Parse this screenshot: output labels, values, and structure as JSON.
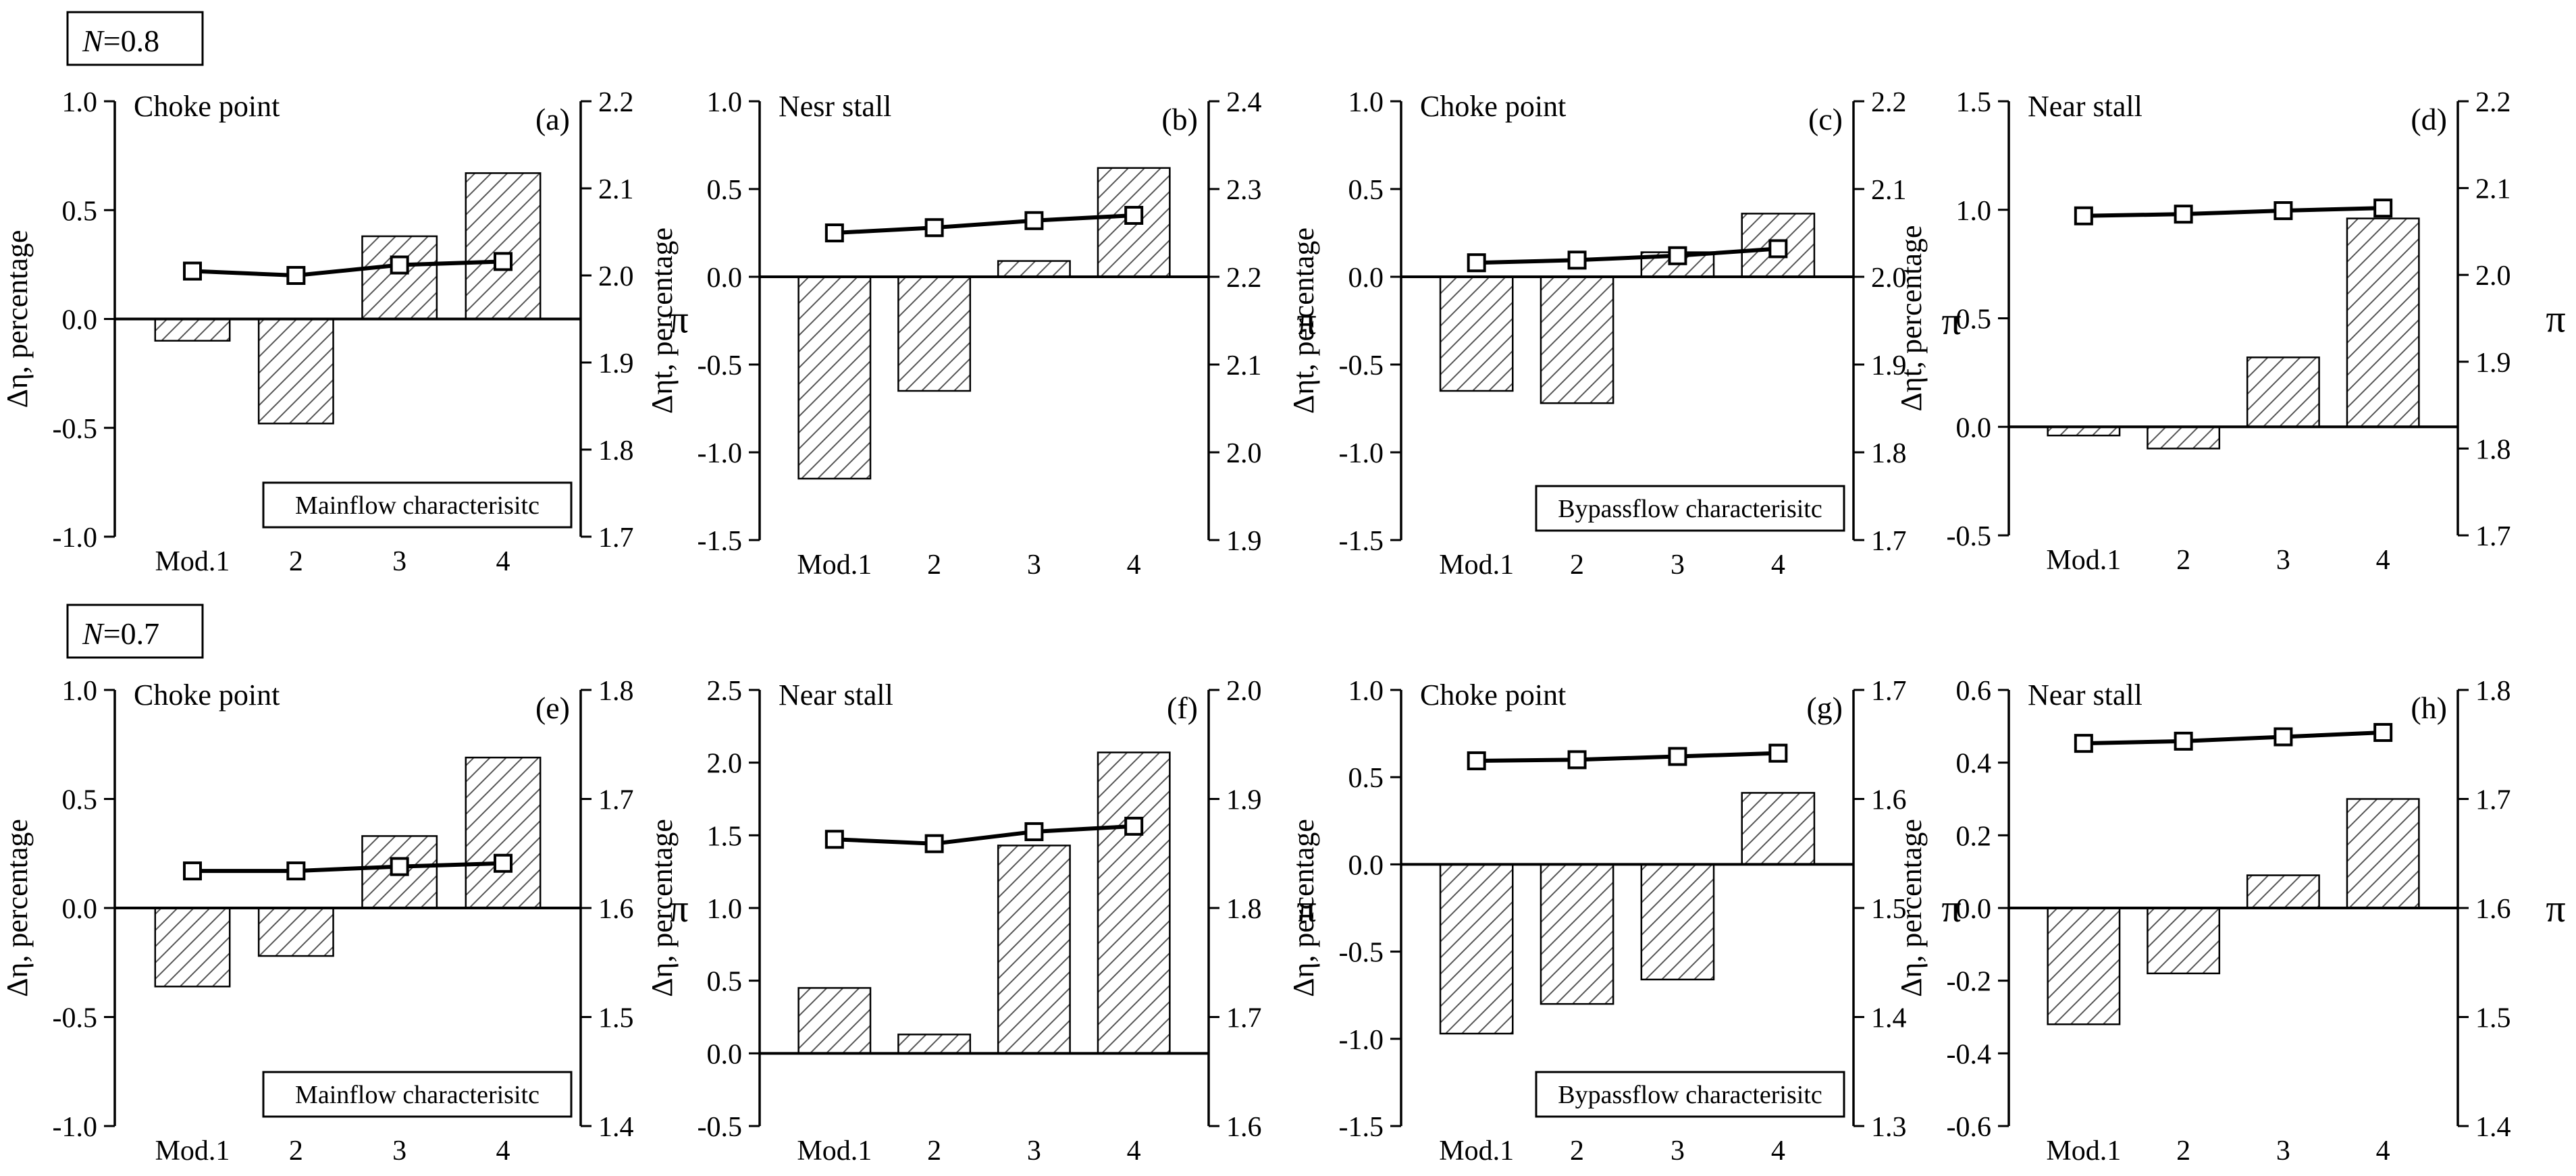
{
  "figure": {
    "rows": [
      {
        "label_var": "N",
        "label_rest": "=0.8"
      },
      {
        "label_var": "N",
        "label_rest": "=0.7"
      }
    ]
  },
  "chart_data": [
    {
      "type": "bar",
      "panel": "(a)",
      "title": "Choke point",
      "legend_box": "Mainflow characterisitc",
      "categories": [
        "Mod.1",
        "2",
        "3",
        "4"
      ],
      "ylabel": "Δη, percentage",
      "y2label": "π",
      "ylim": [
        -1.0,
        1.0
      ],
      "yticks": [
        -1.0,
        -0.5,
        0.0,
        0.5,
        1.0
      ],
      "y2lim": [
        1.7,
        2.2
      ],
      "y2ticks": [
        1.7,
        1.8,
        1.9,
        2.0,
        2.1,
        2.2
      ],
      "series": [
        {
          "name": "Δη",
          "kind": "bar",
          "axis": "left",
          "values": [
            -0.1,
            -0.48,
            0.38,
            0.67
          ]
        },
        {
          "name": "π",
          "kind": "line",
          "axis": "right",
          "values": [
            2.005,
            2.0,
            2.012,
            2.016
          ]
        }
      ]
    },
    {
      "type": "bar",
      "panel": "(b)",
      "title": "Nesr stall",
      "legend_box": "",
      "categories": [
        "Mod.1",
        "2",
        "3",
        "4"
      ],
      "ylabel": "Δηt, percentage",
      "y2label": "π",
      "ylim": [
        -1.5,
        1.0
      ],
      "yticks": [
        -1.5,
        -1.0,
        -0.5,
        0.0,
        0.5,
        1.0
      ],
      "y2lim": [
        1.9,
        2.4
      ],
      "y2ticks": [
        1.9,
        2.0,
        2.1,
        2.2,
        2.3,
        2.4
      ],
      "series": [
        {
          "name": "Δηt",
          "kind": "bar",
          "axis": "left",
          "values": [
            -1.15,
            -0.65,
            0.09,
            0.62
          ]
        },
        {
          "name": "π",
          "kind": "line",
          "axis": "right",
          "values": [
            2.25,
            2.256,
            2.264,
            2.27
          ]
        }
      ]
    },
    {
      "type": "bar",
      "panel": "(c)",
      "title": "Choke point",
      "legend_box": "Bypassflow characterisitc",
      "categories": [
        "Mod.1",
        "2",
        "3",
        "4"
      ],
      "ylabel": "Δηt, percentage",
      "y2label": "π",
      "ylim": [
        -1.5,
        1.0
      ],
      "yticks": [
        -1.5,
        -1.0,
        -0.5,
        0.0,
        0.5,
        1.0
      ],
      "y2lim": [
        1.7,
        2.2
      ],
      "y2ticks": [
        1.7,
        1.8,
        1.9,
        2.0,
        2.1,
        2.2
      ],
      "series": [
        {
          "name": "Δηt",
          "kind": "bar",
          "axis": "left",
          "values": [
            -0.65,
            -0.72,
            0.14,
            0.36
          ]
        },
        {
          "name": "π",
          "kind": "line",
          "axis": "right",
          "values": [
            2.016,
            2.019,
            2.024,
            2.032
          ]
        }
      ]
    },
    {
      "type": "bar",
      "panel": "(d)",
      "title": "Near stall",
      "legend_box": "",
      "categories": [
        "Mod.1",
        "2",
        "3",
        "4"
      ],
      "ylabel": "Δηt, percentage",
      "y2label": "π",
      "ylim": [
        -0.5,
        1.5
      ],
      "yticks": [
        -0.5,
        0.0,
        0.5,
        1.0,
        1.5
      ],
      "y2lim": [
        1.7,
        2.2
      ],
      "y2ticks": [
        1.7,
        1.8,
        1.9,
        2.0,
        2.1,
        2.2
      ],
      "series": [
        {
          "name": "Δηt",
          "kind": "bar",
          "axis": "left",
          "values": [
            -0.04,
            -0.1,
            0.32,
            0.96
          ]
        },
        {
          "name": "π",
          "kind": "line",
          "axis": "right",
          "values": [
            2.068,
            2.07,
            2.074,
            2.077
          ]
        }
      ]
    },
    {
      "type": "bar",
      "panel": "(e)",
      "title": "Choke point",
      "legend_box": "Mainflow characterisitc",
      "categories": [
        "Mod.1",
        "2",
        "3",
        "4"
      ],
      "ylabel": "Δη, percentage",
      "y2label": "π",
      "ylim": [
        -1.0,
        1.0
      ],
      "yticks": [
        -1.0,
        -0.5,
        0.0,
        0.5,
        1.0
      ],
      "y2lim": [
        1.4,
        1.8
      ],
      "y2ticks": [
        1.4,
        1.5,
        1.6,
        1.7,
        1.8
      ],
      "series": [
        {
          "name": "Δη",
          "kind": "bar",
          "axis": "left",
          "values": [
            -0.36,
            -0.22,
            0.33,
            0.69
          ]
        },
        {
          "name": "π",
          "kind": "line",
          "axis": "right",
          "values": [
            1.634,
            1.634,
            1.638,
            1.641
          ]
        }
      ]
    },
    {
      "type": "bar",
      "panel": "(f)",
      "title": "Near stall",
      "legend_box": "",
      "categories": [
        "Mod.1",
        "2",
        "3",
        "4"
      ],
      "ylabel": "Δη, percentage",
      "y2label": "π",
      "ylim": [
        -0.5,
        2.5
      ],
      "yticks": [
        -0.5,
        0.0,
        0.5,
        1.0,
        1.5,
        2.0,
        2.5
      ],
      "y2lim": [
        1.6,
        2.0
      ],
      "y2ticks": [
        1.6,
        1.7,
        1.8,
        1.9,
        2.0
      ],
      "series": [
        {
          "name": "Δη",
          "kind": "bar",
          "axis": "left",
          "values": [
            0.45,
            0.13,
            1.43,
            2.07
          ]
        },
        {
          "name": "π",
          "kind": "line",
          "axis": "right",
          "values": [
            1.863,
            1.859,
            1.87,
            1.875
          ]
        }
      ]
    },
    {
      "type": "bar",
      "panel": "(g)",
      "title": "Choke point",
      "legend_box": "Bypassflow characterisitc",
      "categories": [
        "Mod.1",
        "2",
        "3",
        "4"
      ],
      "ylabel": "Δη, percentage",
      "y2label": "π",
      "ylim": [
        -1.5,
        1.0
      ],
      "yticks": [
        -1.5,
        -1.0,
        -0.5,
        0.0,
        0.5,
        1.0
      ],
      "y2lim": [
        1.3,
        1.7
      ],
      "y2ticks": [
        1.3,
        1.4,
        1.5,
        1.6,
        1.7
      ],
      "series": [
        {
          "name": "Δη",
          "kind": "bar",
          "axis": "left",
          "values": [
            -0.97,
            -0.8,
            -0.66,
            0.41
          ]
        },
        {
          "name": "π",
          "kind": "line",
          "axis": "right",
          "values": [
            1.635,
            1.636,
            1.639,
            1.642
          ]
        }
      ]
    },
    {
      "type": "bar",
      "panel": "(h)",
      "title": "Near stall",
      "legend_box": "",
      "categories": [
        "Mod.1",
        "2",
        "3",
        "4"
      ],
      "ylabel": "Δη, percentage",
      "y2label": "π",
      "ylim": [
        -0.6,
        0.6
      ],
      "yticks": [
        -0.6,
        -0.4,
        -0.2,
        0.0,
        0.2,
        0.4,
        0.6
      ],
      "y2lim": [
        1.4,
        1.8
      ],
      "y2ticks": [
        1.4,
        1.5,
        1.6,
        1.7,
        1.8
      ],
      "series": [
        {
          "name": "Δη",
          "kind": "bar",
          "axis": "left",
          "values": [
            -0.32,
            -0.18,
            0.09,
            0.3
          ]
        },
        {
          "name": "π",
          "kind": "line",
          "axis": "right",
          "values": [
            1.751,
            1.753,
            1.757,
            1.761
          ]
        }
      ]
    }
  ]
}
